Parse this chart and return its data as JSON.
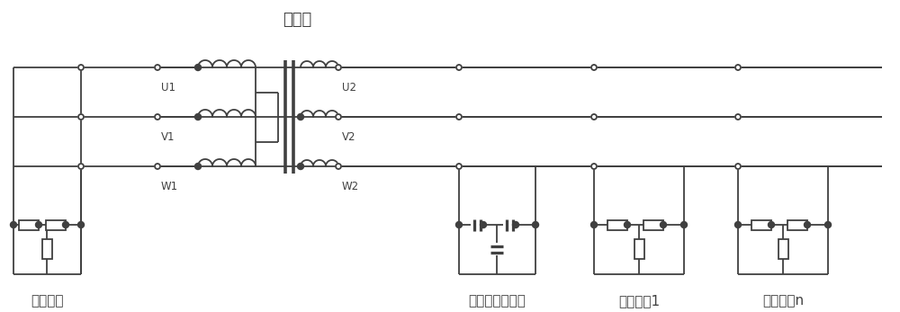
{
  "title": "变压器",
  "labels": {
    "U1": "U1",
    "V1": "V1",
    "W1": "W1",
    "U2": "U2",
    "V2": "V2",
    "W2": "W2",
    "primary": "原边负载",
    "capacitor": "电力电子电容器",
    "secondary1": "次边负载1",
    "secondaryN": "次边负载n"
  },
  "line_color": "#404040",
  "bg_color": "#ffffff",
  "line_width": 1.3,
  "font_size_label": 8.5,
  "font_size_title": 13,
  "font_size_bottom": 11
}
